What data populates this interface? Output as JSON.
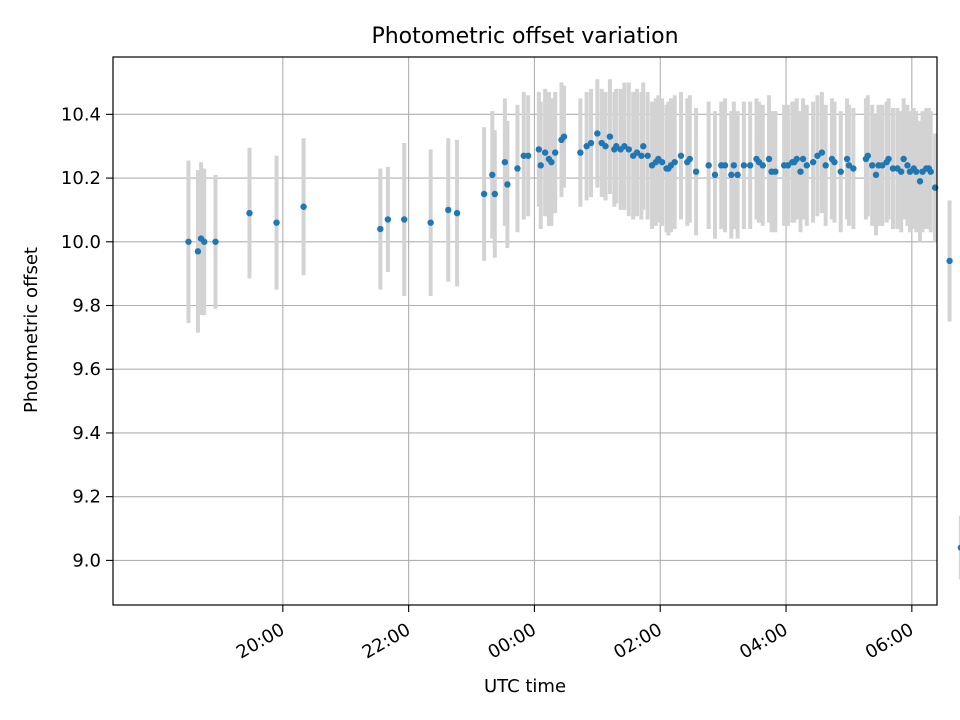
{
  "chart_data": {
    "type": "scatter",
    "title": "Photometric offset variation",
    "xlabel": "UTC time",
    "ylabel": "Photometric offset",
    "x_unit": "hours (UTC, continuous; values ≥ 24 are after midnight)",
    "xlim": [
      17.3,
      30.4
    ],
    "ylim": [
      8.86,
      10.58
    ],
    "grid": true,
    "x_tick_values": [
      20,
      22,
      24,
      26,
      28,
      30
    ],
    "x_tick_labels": [
      "20:00",
      "22:00",
      "00:00",
      "02:00",
      "04:00",
      "06:00"
    ],
    "y_tick_values": [
      9.0,
      9.2,
      9.4,
      9.6,
      9.8,
      10.0,
      10.2,
      10.4
    ],
    "y_tick_labels": [
      "9.0",
      "9.2",
      "9.4",
      "9.6",
      "9.8",
      "10.0",
      "10.2",
      "10.4"
    ],
    "colors": {
      "marker": "#1f77b4",
      "errorbar": "#d3d3d3",
      "grid": "#b0b0b0"
    },
    "series": [
      {
        "x": [
          18.5,
          18.65,
          18.7,
          18.75,
          18.93,
          19.47,
          19.9,
          20.33,
          21.55,
          21.67,
          21.93,
          22.35,
          22.63,
          22.77,
          23.2,
          23.33,
          23.37,
          23.53,
          23.57,
          23.73,
          23.83,
          23.9,
          24.07,
          24.1,
          24.17,
          24.23,
          24.27,
          24.33,
          24.43,
          24.47,
          24.73,
          24.83,
          24.9,
          25.0,
          25.07,
          25.13,
          25.2,
          25.27,
          25.3,
          25.37,
          25.43,
          25.5,
          25.57,
          25.63,
          25.7,
          25.73,
          25.8,
          25.87,
          25.93,
          25.97,
          26.03,
          26.1,
          26.13,
          26.17,
          26.23,
          26.33,
          26.43,
          26.47,
          26.57,
          26.77,
          26.87,
          26.97,
          27.03,
          27.13,
          27.17,
          27.23,
          27.33,
          27.43,
          27.53,
          27.57,
          27.63,
          27.73,
          27.77,
          27.83,
          27.97,
          28.03,
          28.1,
          28.13,
          28.17,
          28.23,
          28.27,
          28.33,
          28.43,
          28.5,
          28.57,
          28.63,
          28.73,
          28.77,
          28.87,
          28.97,
          29.0,
          29.07,
          29.27,
          29.3,
          29.37,
          29.43,
          29.47,
          29.53,
          29.6,
          29.63,
          29.7,
          29.77,
          29.83,
          29.87,
          29.93,
          29.97,
          30.03,
          30.07,
          30.13,
          30.17,
          30.23,
          30.27,
          30.3,
          30.37,
          30.6,
          30.78
        ],
        "y": [
          10.0,
          9.97,
          10.01,
          10.0,
          10.0,
          10.09,
          10.06,
          10.11,
          10.04,
          10.07,
          10.07,
          10.06,
          10.1,
          10.09,
          10.15,
          10.21,
          10.15,
          10.25,
          10.18,
          10.23,
          10.27,
          10.27,
          10.29,
          10.24,
          10.28,
          10.26,
          10.25,
          10.28,
          10.32,
          10.33,
          10.28,
          10.3,
          10.31,
          10.34,
          10.31,
          10.3,
          10.33,
          10.29,
          10.3,
          10.29,
          10.3,
          10.29,
          10.27,
          10.28,
          10.27,
          10.3,
          10.27,
          10.24,
          10.25,
          10.26,
          10.25,
          10.23,
          10.23,
          10.24,
          10.25,
          10.27,
          10.25,
          10.26,
          10.22,
          10.24,
          10.21,
          10.24,
          10.24,
          10.21,
          10.24,
          10.21,
          10.24,
          10.24,
          10.26,
          10.25,
          10.24,
          10.26,
          10.22,
          10.22,
          10.24,
          10.24,
          10.25,
          10.25,
          10.26,
          10.22,
          10.26,
          10.24,
          10.25,
          10.27,
          10.28,
          10.24,
          10.26,
          10.25,
          10.22,
          10.26,
          10.24,
          10.23,
          10.26,
          10.27,
          10.24,
          10.21,
          10.24,
          10.24,
          10.25,
          10.26,
          10.23,
          10.23,
          10.22,
          10.26,
          10.24,
          10.22,
          10.23,
          10.22,
          10.19,
          10.22,
          10.23,
          10.23,
          10.22,
          10.17,
          9.94,
          9.04
        ],
        "err": [
          0.255,
          0.255,
          0.24,
          0.23,
          0.21,
          0.205,
          0.21,
          0.215,
          0.19,
          0.165,
          0.24,
          0.23,
          0.225,
          0.23,
          0.21,
          0.2,
          0.2,
          0.2,
          0.2,
          0.2,
          0.2,
          0.19,
          0.18,
          0.2,
          0.2,
          0.21,
          0.2,
          0.19,
          0.18,
          0.16,
          0.17,
          0.17,
          0.17,
          0.17,
          0.17,
          0.17,
          0.18,
          0.18,
          0.18,
          0.19,
          0.2,
          0.21,
          0.2,
          0.2,
          0.2,
          0.2,
          0.2,
          0.2,
          0.2,
          0.2,
          0.2,
          0.2,
          0.21,
          0.21,
          0.21,
          0.2,
          0.2,
          0.2,
          0.2,
          0.2,
          0.2,
          0.2,
          0.21,
          0.2,
          0.2,
          0.2,
          0.2,
          0.2,
          0.19,
          0.19,
          0.19,
          0.2,
          0.19,
          0.19,
          0.19,
          0.19,
          0.19,
          0.19,
          0.19,
          0.19,
          0.19,
          0.19,
          0.19,
          0.19,
          0.19,
          0.19,
          0.19,
          0.19,
          0.19,
          0.19,
          0.19,
          0.19,
          0.19,
          0.19,
          0.19,
          0.19,
          0.19,
          0.19,
          0.19,
          0.19,
          0.19,
          0.19,
          0.19,
          0.19,
          0.19,
          0.19,
          0.19,
          0.19,
          0.19,
          0.19,
          0.19,
          0.19,
          0.19,
          0.17,
          0.19,
          0.1
        ]
      }
    ]
  }
}
